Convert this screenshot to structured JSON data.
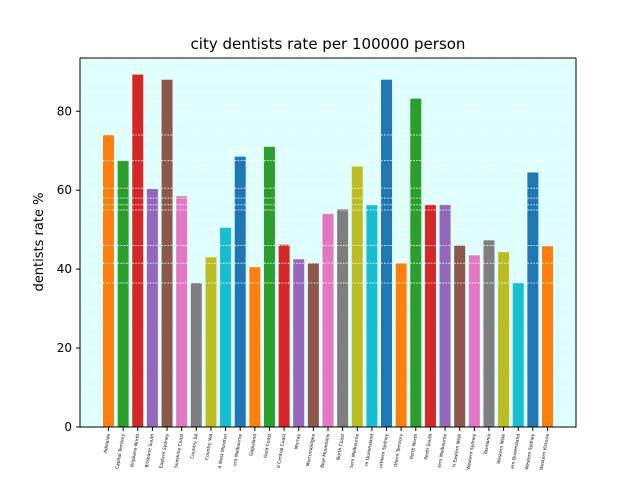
{
  "chart_data": {
    "type": "bar",
    "title": "city dentists rate per 100000 person",
    "xlabel": "",
    "ylabel": "dentists rate %",
    "ylim": [
      0,
      93.5
    ],
    "yticks": [
      0,
      20,
      40,
      60,
      80
    ],
    "grid": "horizontal dotted white lines",
    "background": "#e0ffff",
    "categories": [
      "Adelaide",
      "Capital Territory",
      "Brisbane North",
      "Brisbane South",
      "Eastern Sydney",
      "Sunshine Coast",
      "Country SA",
      "Country WA",
      "d West Moreton",
      "ern Melbourne",
      "Gippsland",
      "Gold Coast",
      "d Central Coast",
      "Murray",
      "Murrumbidgee",
      "Blue Mountains",
      "North Coast",
      "tern Melbourne",
      "rn Queensland",
      "orthern Sydney",
      "rthern Territory",
      "Perth North",
      "Perth South",
      "tern Melbourne",
      "h Eastern NSW",
      "Western Sydney",
      "Tasmania",
      "Western NSW",
      "ern Queensland",
      "Western Sydney",
      "Western Victoria"
    ],
    "values": [
      74,
      67.5,
      89.3,
      60.3,
      88,
      58.5,
      36.5,
      43,
      50.5,
      68.5,
      40.5,
      71,
      46.2,
      42.5,
      41.5,
      54,
      55.2,
      66,
      56.2,
      88,
      41.5,
      83.2,
      56.3,
      56.3,
      46,
      43.5,
      47.3,
      44.3,
      36.5,
      64.5,
      45.8
    ],
    "colors": [
      "#ff7f0e",
      "#2ca02c",
      "#d62728",
      "#9467bd",
      "#8c564b",
      "#e377c2",
      "#7f7f7f",
      "#bcbd22",
      "#17becf",
      "#1f77b4"
    ]
  }
}
